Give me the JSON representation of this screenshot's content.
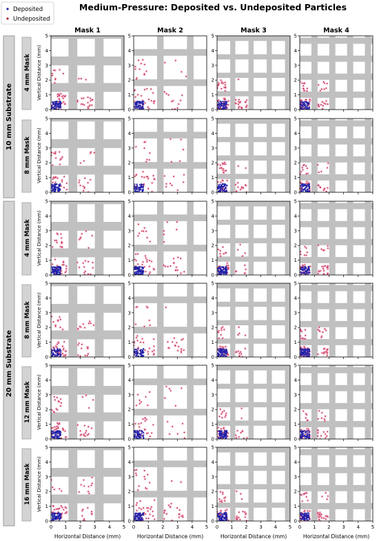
{
  "title": "Medium-Pressure: Deposited vs. Undeposited Particles",
  "legend": {
    "placement": "top-left",
    "items": [
      {
        "label": "Deposited",
        "color": "#1f1fa8"
      },
      {
        "label": "Undeposited",
        "color": "#b22222"
      }
    ]
  },
  "columns": [
    "Mask 1",
    "Mask 2",
    "Mask 3",
    "Mask 4"
  ],
  "substrate_groups": [
    {
      "label": "10 mm Substrate",
      "rows": [
        0,
        1
      ]
    },
    {
      "label": "20 mm Substrate",
      "rows": [
        2,
        3,
        4,
        5
      ]
    }
  ],
  "row_labels": [
    "4 mm Mask",
    "8 mm Mask",
    "4 mm Mask",
    "8 mm Mask",
    "12 mm Mask",
    "16 mm Mask"
  ],
  "xlabel": "Horizontal Distance (mm)",
  "ylabel": "Vertical Distance (mm)",
  "colors": {
    "mask_gray": "#c0c0c0",
    "deposited": "#1f1fa8",
    "undeposited": "#b22222",
    "halo": "#ff9fd0",
    "group_bar": "#d3d3d3"
  },
  "chart_data": {
    "type": "scatter",
    "xlim": [
      0,
      5
    ],
    "ylim": [
      0,
      5
    ],
    "xticks": [
      0,
      1,
      2,
      3,
      4,
      5
    ],
    "yticks": [
      0,
      1,
      2,
      3,
      4,
      5
    ],
    "grid": false,
    "series": [
      {
        "name": "Deposited"
      },
      {
        "name": "Undeposited"
      }
    ],
    "mask_opening_mm": {
      "Mask 1": {
        "open": 1.2,
        "bar": 0.6
      },
      "Mask 2": {
        "open": 1.6,
        "bar": 0.45
      },
      "Mask 3": {
        "open": 0.9,
        "bar": 0.35
      },
      "Mask 4": {
        "open": 0.8,
        "bar": 0.42
      }
    }
  }
}
